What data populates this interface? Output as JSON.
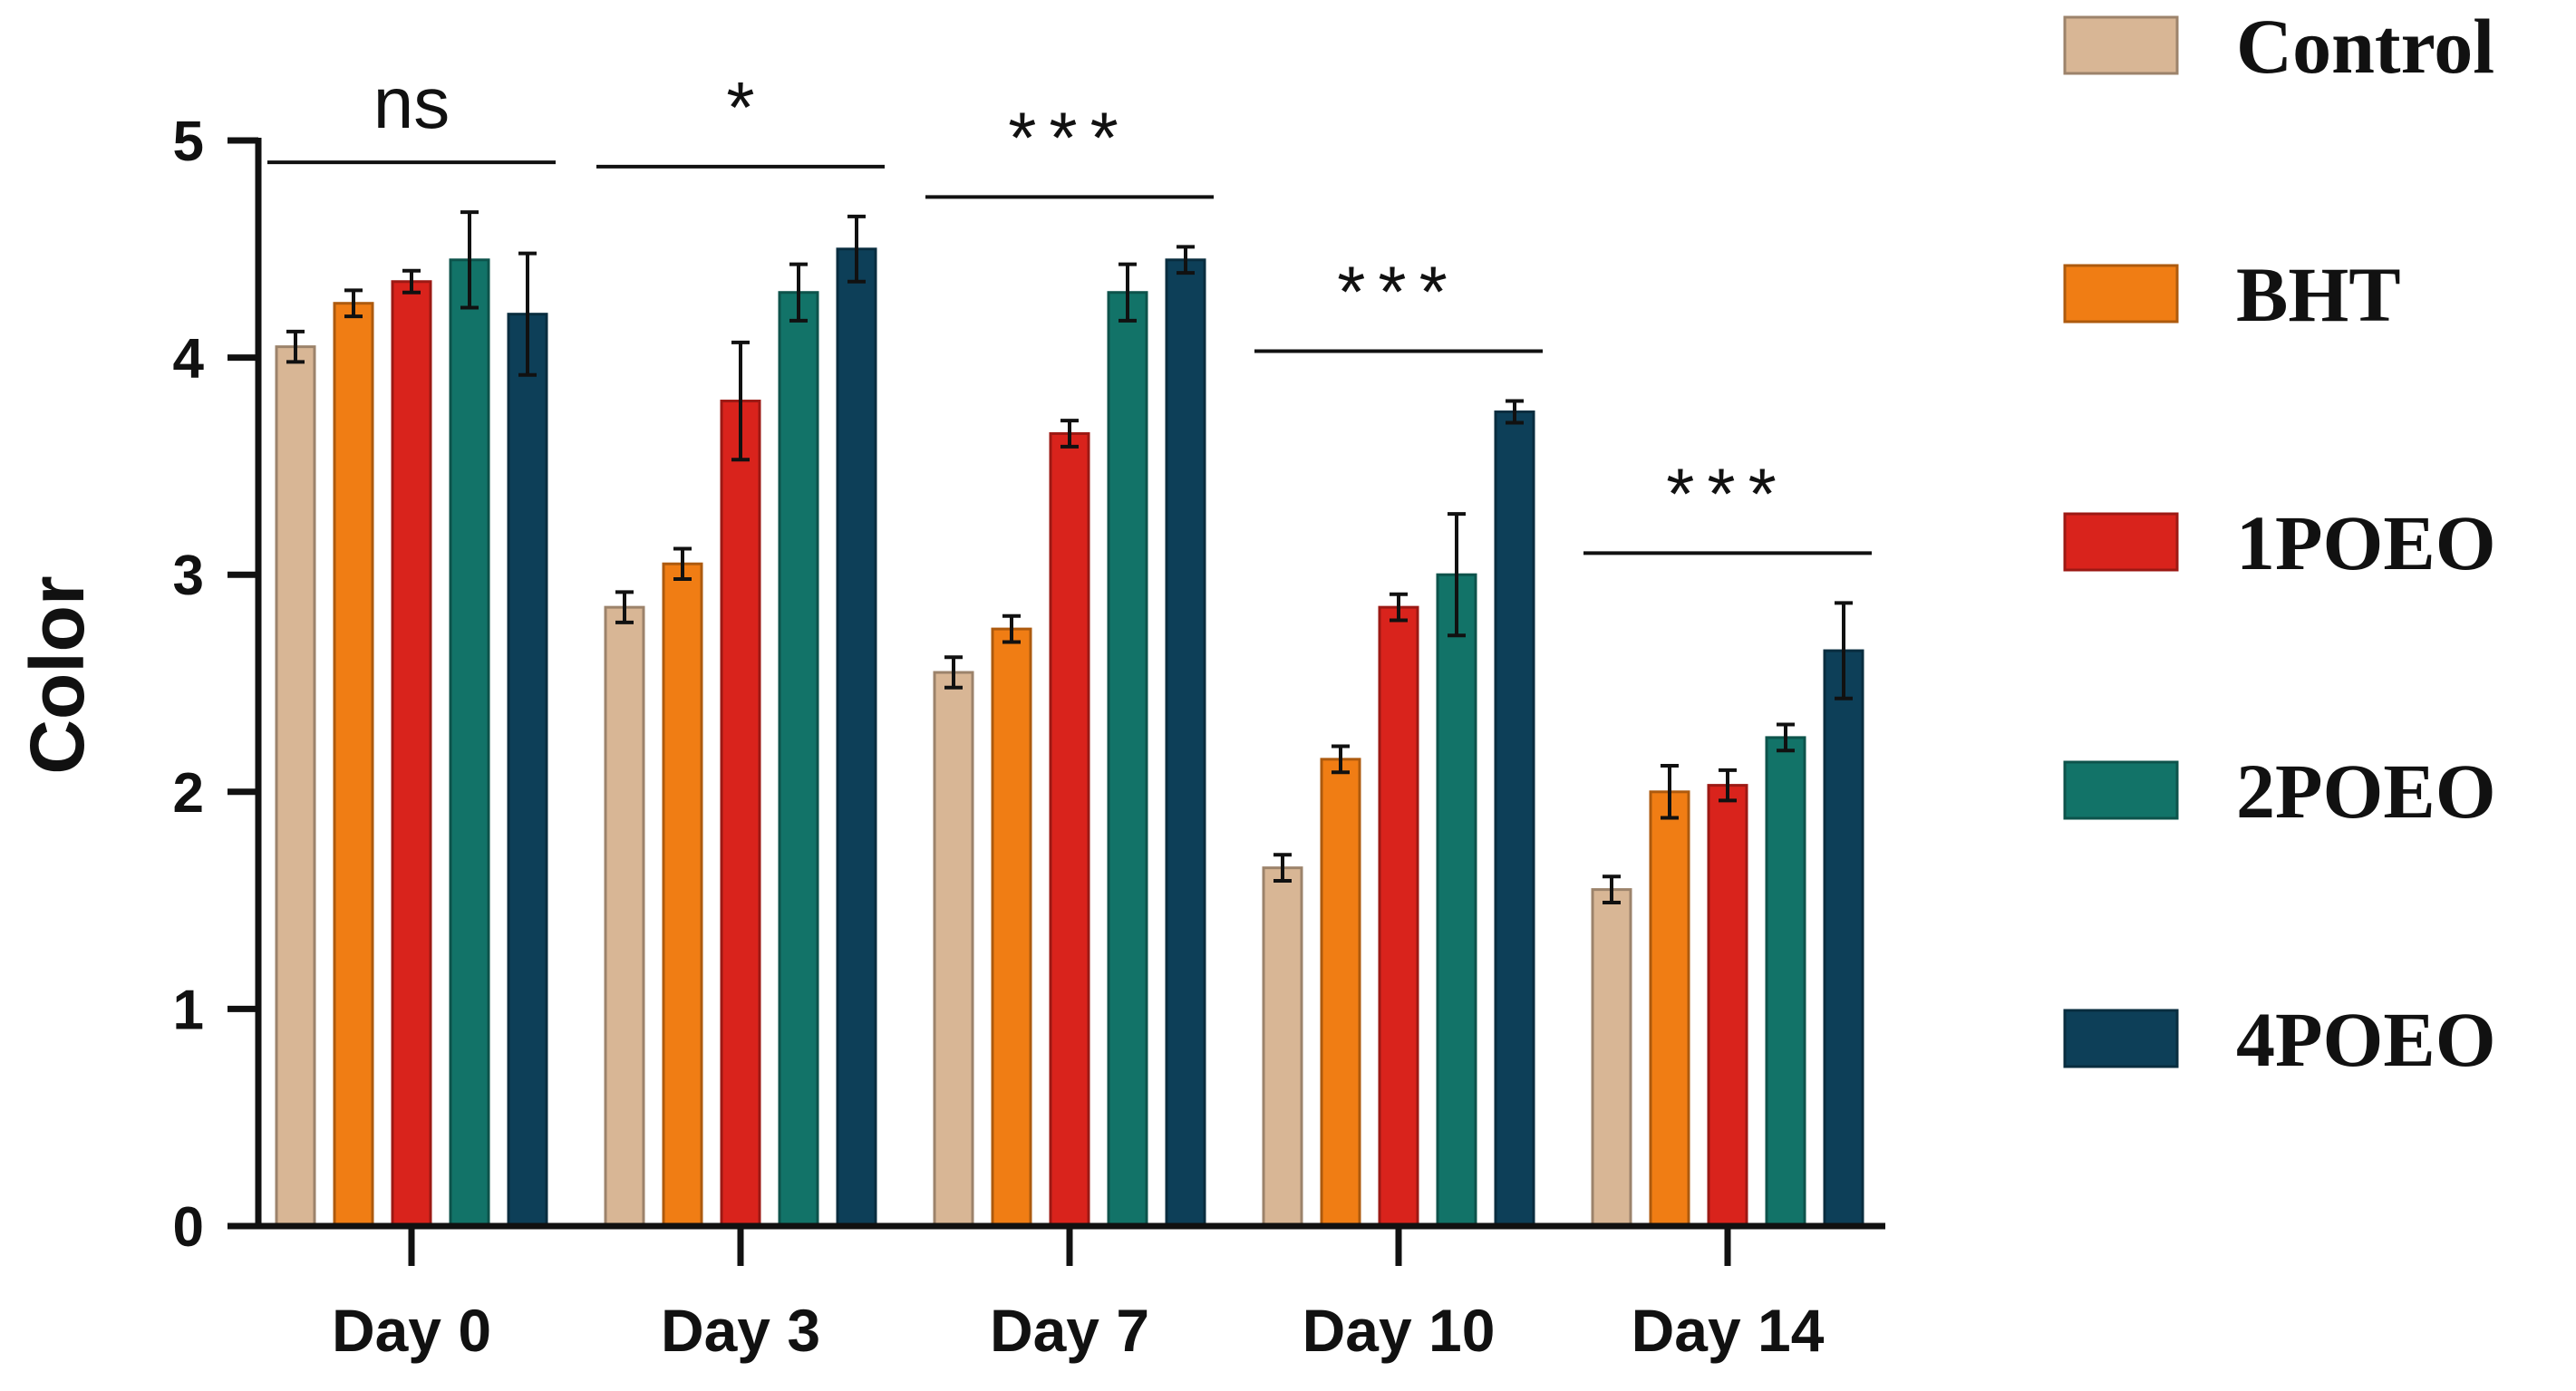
{
  "chart_data": {
    "type": "bar",
    "title": "",
    "xlabel": "",
    "ylabel": "Color",
    "ylim": [
      0,
      5
    ],
    "yticks": [
      "0",
      "1",
      "2",
      "3",
      "4",
      "5"
    ],
    "categories": [
      "Day 0",
      "Day 3",
      "Day 7",
      "Day 10",
      "Day 14"
    ],
    "series": [
      {
        "name": "Control",
        "color": "#d8b695",
        "values": [
          4.05,
          2.85,
          2.55,
          1.65,
          1.55
        ],
        "errors": [
          0.07,
          0.07,
          0.07,
          0.06,
          0.06
        ]
      },
      {
        "name": "BHT",
        "color": "#f07d14",
        "values": [
          4.25,
          3.05,
          2.75,
          2.15,
          2.0
        ],
        "errors": [
          0.06,
          0.07,
          0.06,
          0.06,
          0.12
        ]
      },
      {
        "name": "1POEO",
        "color": "#d9231c",
        "values": [
          4.35,
          3.8,
          3.65,
          2.85,
          2.03
        ],
        "errors": [
          0.05,
          0.27,
          0.06,
          0.06,
          0.07
        ]
      },
      {
        "name": "2POEO",
        "color": "#127368",
        "values": [
          4.45,
          4.3,
          4.3,
          3.0,
          2.25
        ],
        "errors": [
          0.22,
          0.13,
          0.13,
          0.28,
          0.06
        ]
      },
      {
        "name": "4POEO",
        "color": "#0d3f58",
        "values": [
          4.2,
          4.5,
          4.45,
          3.75,
          2.65
        ],
        "errors": [
          0.28,
          0.15,
          0.06,
          0.05,
          0.22
        ]
      }
    ],
    "significance": [
      "ns",
      "*",
      "***",
      "***",
      "***"
    ],
    "legend_position": "right",
    "grid": false
  }
}
